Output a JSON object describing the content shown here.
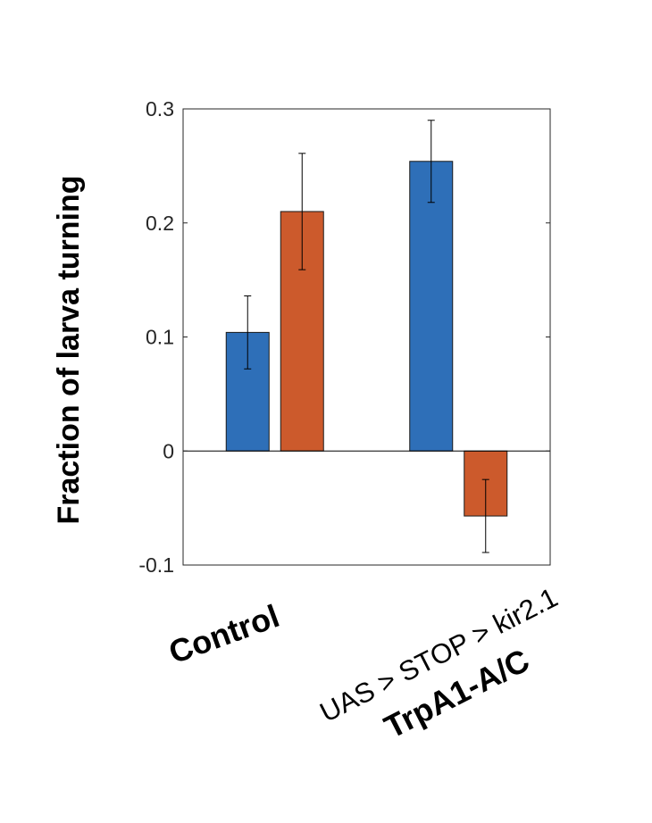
{
  "chart_data": {
    "type": "bar",
    "ylabel": "Fraction of larva turning",
    "ylim": [
      -0.1,
      0.3
    ],
    "yticks": [
      -0.1,
      0,
      0.1,
      0.2,
      0.3
    ],
    "ytick_labels": [
      "-0.1",
      "0",
      "0.1",
      "0.2",
      "0.3"
    ],
    "categories": [
      {
        "label": "Control"
      },
      {
        "label": "TrpA1-A/C",
        "sublabel": "UAS > STOP > kir2.1"
      }
    ],
    "series": [
      {
        "color": "#2e6fb8",
        "values": [
          0.104,
          0.254
        ],
        "errors": [
          0.032,
          0.036
        ]
      },
      {
        "color": "#cc5a2c",
        "values": [
          0.21,
          -0.057
        ],
        "errors": [
          0.051,
          0.032
        ]
      }
    ],
    "grid": false,
    "legend": "none"
  }
}
